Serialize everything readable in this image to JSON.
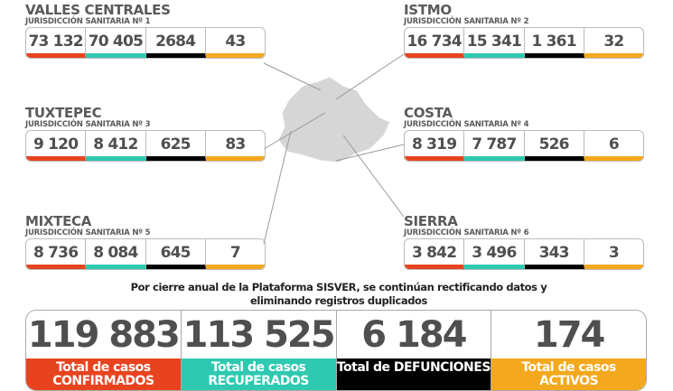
{
  "regions": [
    {
      "name": "VALLES CENTRALES",
      "sub": "JURISDICCIÓN SANITARIA Nº 1",
      "values": [
        "73 132",
        "70 405",
        "2684",
        "43"
      ]
    },
    {
      "name": "ISTMO",
      "sub": "JURISDICCIÓN SANITARIA Nº 2",
      "values": [
        "16 734",
        "15 341",
        "1 361",
        "32"
      ]
    },
    {
      "name": "TUXTEPEC",
      "sub": "JURISDICCIÓN SANITARIA Nº 3",
      "values": [
        "9 120",
        "8 412",
        "625",
        "83"
      ]
    },
    {
      "name": "COSTA",
      "sub": "JURISDICCIÓN SANITARIA Nº 4",
      "values": [
        "8 319",
        "7 787",
        "526",
        "6"
      ]
    },
    {
      "name": "MIXTECA",
      "sub": "JURISDICCIÓN SANITARIA Nº 5",
      "values": [
        "8 736",
        "8 084",
        "645",
        "7"
      ]
    },
    {
      "name": "SIERRA",
      "sub": "JURISDICCIÓN SANITARIA Nº 6",
      "values": [
        "3 842",
        "3 496",
        "343",
        "3"
      ]
    }
  ],
  "note": "Por cierre anual de la Plataforma SISVER, se continúan rectificando datos y eliminando registros duplicados",
  "totals": [
    {
      "value": "119 883",
      "label": "Total de casos CONFIRMADOS",
      "color": "#e8431f"
    },
    {
      "value": "113 525",
      "label": "Total de casos RECUPERADOS",
      "color": "#2ec9b0"
    },
    {
      "value": "6 184",
      "label": "Total de DEFUNCIONES",
      "color": "#000000"
    },
    {
      "value": "174",
      "label": "Total de casos ACTIVOS",
      "color": "#f4a81d"
    }
  ],
  "colors": {
    "confirmed": "#e8431f",
    "recovered": "#2ec9b0",
    "deaths": "#000000",
    "active": "#f4a81d"
  },
  "map_icon": "oaxaca-map"
}
